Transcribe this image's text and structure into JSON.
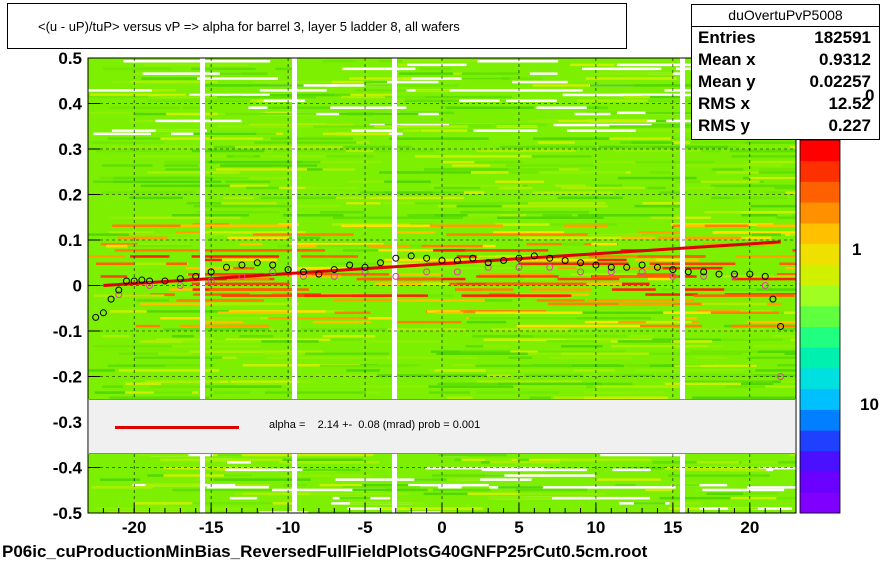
{
  "title": "<(u - uP)/tuP>  versus   vP =>  alpha for barrel 3, layer 5 ladder 8, all wafers",
  "footer": "P06ic_cuProductionMinBias_ReversedFullFieldPlotsG40GNFP25rCut0.5cm.root",
  "stats": {
    "name": "duOvertuPvP5008",
    "rows": [
      {
        "label": "Entries",
        "value": "182591"
      },
      {
        "label": "Mean x",
        "value": "0.9312"
      },
      {
        "label": "Mean y",
        "value": "0.02257"
      },
      {
        "label": "RMS x",
        "value": "12.52"
      },
      {
        "label": "RMS y",
        "value": "0.227"
      }
    ]
  },
  "legend": {
    "text": "alpha =    2.14 +-  0.08 (mrad) prob = 0.001",
    "line_color": "#e00000"
  },
  "zaxis": {
    "labels": [
      {
        "text": "0"
      },
      {
        "text": "1"
      },
      {
        "text": "10"
      }
    ],
    "palette": [
      "#7f00ff",
      "#6a00ff",
      "#4a10ff",
      "#2040ff",
      "#0080ff",
      "#00c0ff",
      "#00e0e0",
      "#00f0b0",
      "#20ff80",
      "#60ff40",
      "#a0ff20",
      "#d0f000",
      "#f0e000",
      "#ffc000",
      "#ff9000",
      "#ff6000",
      "#ff3000",
      "#ff0000"
    ]
  },
  "chart_data": {
    "type": "heatmap",
    "xlim": [
      -23,
      23
    ],
    "ylim": [
      -0.5,
      0.5
    ],
    "x_ticks": [
      -20,
      -15,
      -10,
      -5,
      0,
      5,
      10,
      15,
      20
    ],
    "y_ticks": [
      -0.5,
      -0.4,
      -0.3,
      -0.2,
      -0.1,
      0,
      0.1,
      0.2,
      0.3,
      0.4,
      0.5
    ],
    "y_tick_labels": [
      "-0.5",
      "-0.4",
      "-0.3",
      "-0.2",
      "-0.1",
      "0",
      "0.1",
      "0.2",
      "0.3",
      "0.4",
      "0.5"
    ],
    "grid": true,
    "fit_line": {
      "x": [
        -22,
        22
      ],
      "y": [
        0.0,
        0.096
      ],
      "color": "#e00000"
    },
    "profile_black": {
      "x": [
        -22.5,
        -22,
        -21.5,
        -21,
        -20.5,
        -20,
        -19.5,
        -19,
        -18,
        -17,
        -16,
        -15,
        -14,
        -13,
        -12,
        -11,
        -10,
        -9,
        -8,
        -7,
        -6,
        -5,
        -4,
        -3,
        -2,
        -1,
        0,
        1,
        2,
        3,
        4,
        5,
        6,
        7,
        8,
        9,
        10,
        11,
        12,
        13,
        14,
        15,
        16,
        17,
        18,
        19,
        20,
        21,
        21.5,
        22
      ],
      "y": [
        -0.07,
        -0.06,
        -0.03,
        -0.01,
        0.01,
        0.01,
        0.012,
        0.01,
        0.01,
        0.015,
        0.02,
        0.03,
        0.04,
        0.045,
        0.05,
        0.045,
        0.035,
        0.03,
        0.025,
        0.035,
        0.045,
        0.04,
        0.05,
        0.06,
        0.065,
        0.06,
        0.055,
        0.055,
        0.06,
        0.05,
        0.055,
        0.06,
        0.065,
        0.06,
        0.055,
        0.05,
        0.045,
        0.04,
        0.04,
        0.045,
        0.04,
        0.035,
        0.03,
        0.03,
        0.025,
        0.025,
        0.025,
        0.02,
        -0.03,
        -0.09
      ]
    },
    "profile_pink": {
      "x": [
        -21,
        -19,
        -17,
        -15,
        -13,
        -11,
        -9,
        -7,
        -5,
        -3,
        -1,
        1,
        3,
        5,
        7,
        9,
        11,
        13,
        15,
        17,
        19,
        21,
        22
      ],
      "y": [
        -0.02,
        0.0,
        0.0,
        0.01,
        0.02,
        0.03,
        0.02,
        0.02,
        0.03,
        0.02,
        0.03,
        0.03,
        0.04,
        0.04,
        0.04,
        0.03,
        0.03,
        0.03,
        0.02,
        0.02,
        0.02,
        0.0,
        -0.2
      ]
    }
  }
}
